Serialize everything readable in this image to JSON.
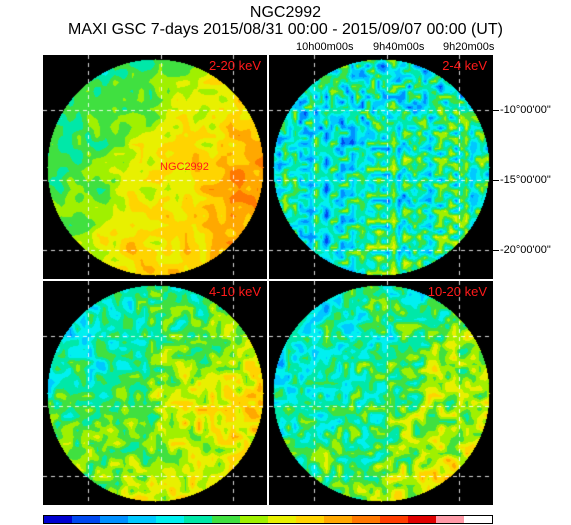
{
  "header": {
    "source": "NGC2992",
    "subtitle": "MAXI GSC 7-days 2015/08/31 00:00 - 2015/09/07 00:00 (UT)"
  },
  "panels": [
    {
      "band": "2-20 keV",
      "source_label": "NGC2992"
    },
    {
      "band": "2-4 keV"
    },
    {
      "band": "4-10 keV"
    },
    {
      "band": "10-20 keV"
    }
  ],
  "axes": {
    "ra_labels": [
      "10h00m00s",
      "9h40m00s",
      "9h20m00s"
    ],
    "dec_labels": [
      "-10°00'00\"",
      "-15°00'00\"",
      "-20°00'00\""
    ]
  },
  "colorbar": {
    "colors": [
      "#0000d0",
      "#0048f0",
      "#0090ff",
      "#00c8ff",
      "#00f0f0",
      "#00e8a8",
      "#40e040",
      "#a0f000",
      "#e8f000",
      "#ffd400",
      "#ffa800",
      "#ff7800",
      "#ff3c00",
      "#e00000",
      "#ff9aa8",
      "#ffffff"
    ]
  },
  "chart_data": {
    "type": "heatmap",
    "title": "NGC2992",
    "subtitle": "MAXI GSC 7-days 2015/08/31 00:00 - 2015/09/07 00:00 (UT)",
    "panels": [
      "2-20 keV",
      "2-4 keV",
      "4-10 keV",
      "10-20 keV"
    ],
    "ra_tick_labels": [
      "10h00m00s",
      "9h40m00s",
      "9h20m00s"
    ],
    "dec_tick_labels": [
      "-10°00'00\"",
      "-15°00'00\"",
      "-20°00'00\"",
      ""
    ],
    "grid": true,
    "source_marker": "NGC2992",
    "colormap": "rainbow (blue-cyan-green-yellow-red-pink-white)"
  }
}
